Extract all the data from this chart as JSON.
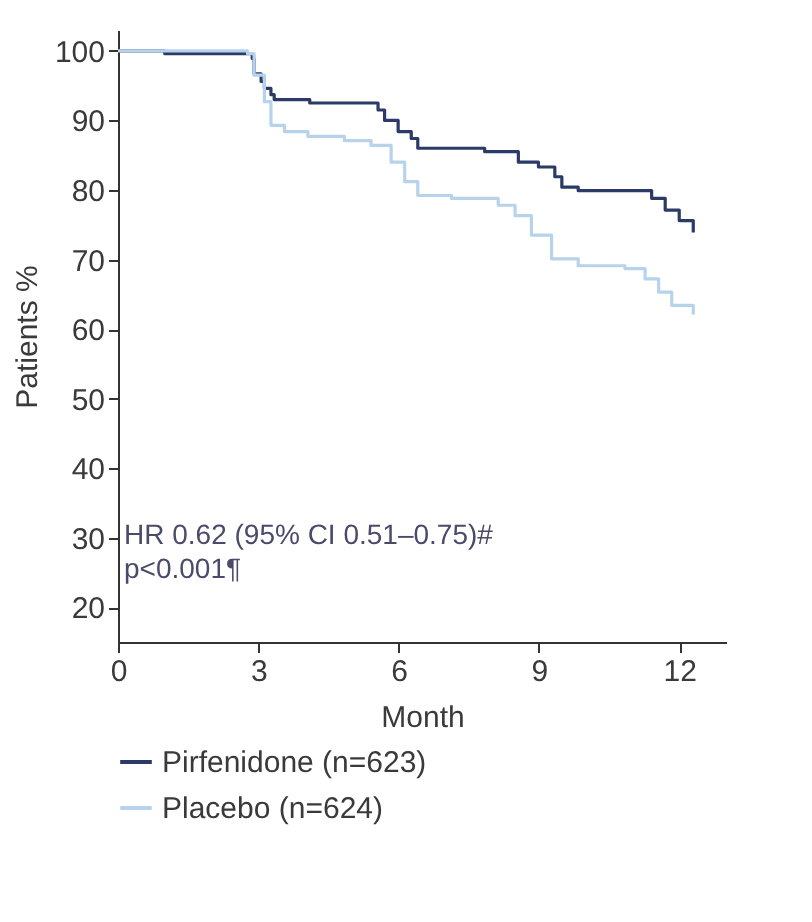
{
  "chart_data": {
    "type": "step",
    "xlabel": "Month",
    "ylabel": "Patients %",
    "xlim": [
      0,
      13
    ],
    "xticks": [
      0,
      3,
      6,
      9,
      12
    ],
    "ylim": [
      15,
      103
    ],
    "yticks": [
      20,
      30,
      40,
      50,
      60,
      70,
      80,
      90,
      100
    ],
    "grid": false,
    "legend": "bottom",
    "marker": "none",
    "line_style": "solid",
    "annotations": [
      "HR 0.62 (95% CI 0.51–0.75)#",
      "p<0.001¶"
    ],
    "series": [
      {
        "name": "Pirfenidone (n=623)",
        "color": "#2b3a67",
        "x": [
          0,
          1.0,
          2.77,
          2.87,
          2.91,
          3.06,
          3.13,
          3.27,
          3.34,
          4.06,
          4.1,
          5.34,
          5.56,
          5.7,
          5.99,
          6.27,
          6.41,
          7.77,
          7.84,
          8.41,
          8.56,
          8.99,
          9.34,
          9.49,
          9.84,
          11.13,
          11.41,
          11.7,
          12.0,
          12.3
        ],
        "values": [
          100,
          99.6,
          99.6,
          98.9,
          96.7,
          95.6,
          94.6,
          93.7,
          93,
          93,
          92.5,
          92.5,
          91.5,
          90,
          88.4,
          87.4,
          86,
          86,
          85.5,
          85.5,
          84,
          83.3,
          81.9,
          80.4,
          79.9,
          79.9,
          78.8,
          77.1,
          75.6,
          73.9
        ]
      },
      {
        "name": "Placebo (n=624)",
        "color": "#b7d3ec",
        "x": [
          0,
          2.77,
          2.91,
          3.13,
          3.27,
          3.56,
          4.06,
          4.84,
          5.41,
          5.84,
          6.13,
          6.41,
          7.13,
          8.13,
          8.49,
          8.84,
          9.27,
          9.84,
          10.84,
          11.27,
          11.56,
          11.84,
          12.3
        ],
        "values": [
          100,
          99.6,
          96.5,
          92.7,
          89.3,
          88.4,
          87.7,
          87.1,
          86.4,
          84,
          81.2,
          79.2,
          78.8,
          77.8,
          76.3,
          73.5,
          70.1,
          69.1,
          68.7,
          67.2,
          65.3,
          63.4,
          62.1
        ]
      }
    ]
  }
}
